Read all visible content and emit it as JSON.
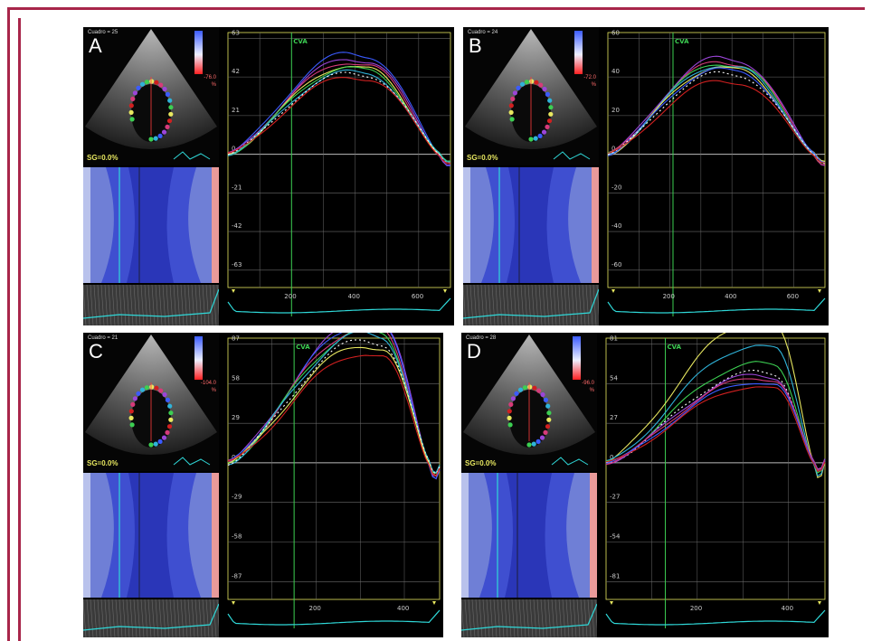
{
  "panels": [
    {
      "letter": "A",
      "frame_label": "Cuadro = 25",
      "scale_value": "-76.0",
      "scale_unit": "%",
      "sg_label": "SG=0.0%",
      "cva_label": "CVA",
      "y_ticks": [
        "63",
        "42",
        "21",
        "0",
        "-21",
        "-42",
        "-63"
      ],
      "x_ticks": [
        "200",
        "400",
        "600"
      ]
    },
    {
      "letter": "B",
      "frame_label": "Cuadro = 24",
      "scale_value": "-72.0",
      "scale_unit": "%",
      "sg_label": "SG=0.0%",
      "cva_label": "CVA",
      "y_ticks": [
        "60",
        "40",
        "20",
        "0",
        "-20",
        "-40",
        "-60"
      ],
      "x_ticks": [
        "200",
        "400",
        "600"
      ]
    },
    {
      "letter": "C",
      "frame_label": "Cuadro = 21",
      "scale_value": "-104.0",
      "scale_unit": "%",
      "sg_label": "SG=0.0%",
      "cva_label": "CVA",
      "y_ticks": [
        "87",
        "58",
        "29",
        "0",
        "-29",
        "-58",
        "-87"
      ],
      "x_ticks": [
        "200",
        "400"
      ]
    },
    {
      "letter": "D",
      "frame_label": "Cuadro = 28",
      "scale_value": "-96.0",
      "scale_unit": "%",
      "sg_label": "SG=0.0%",
      "cva_label": "CVA",
      "y_ticks": [
        "81",
        "54",
        "27",
        "0",
        "-27",
        "-54",
        "-81"
      ],
      "x_ticks": [
        "200",
        "400"
      ]
    }
  ],
  "colors": {
    "frame": "#a8264a",
    "cva_line": "#3ccf52",
    "grid": "#6a6a6a",
    "segments": [
      "#3ccf52",
      "#2fb3d9",
      "#3b5bff",
      "#9b45d8",
      "#d63a7a",
      "#d02020",
      "#e8e860",
      "#ffffff"
    ]
  }
}
